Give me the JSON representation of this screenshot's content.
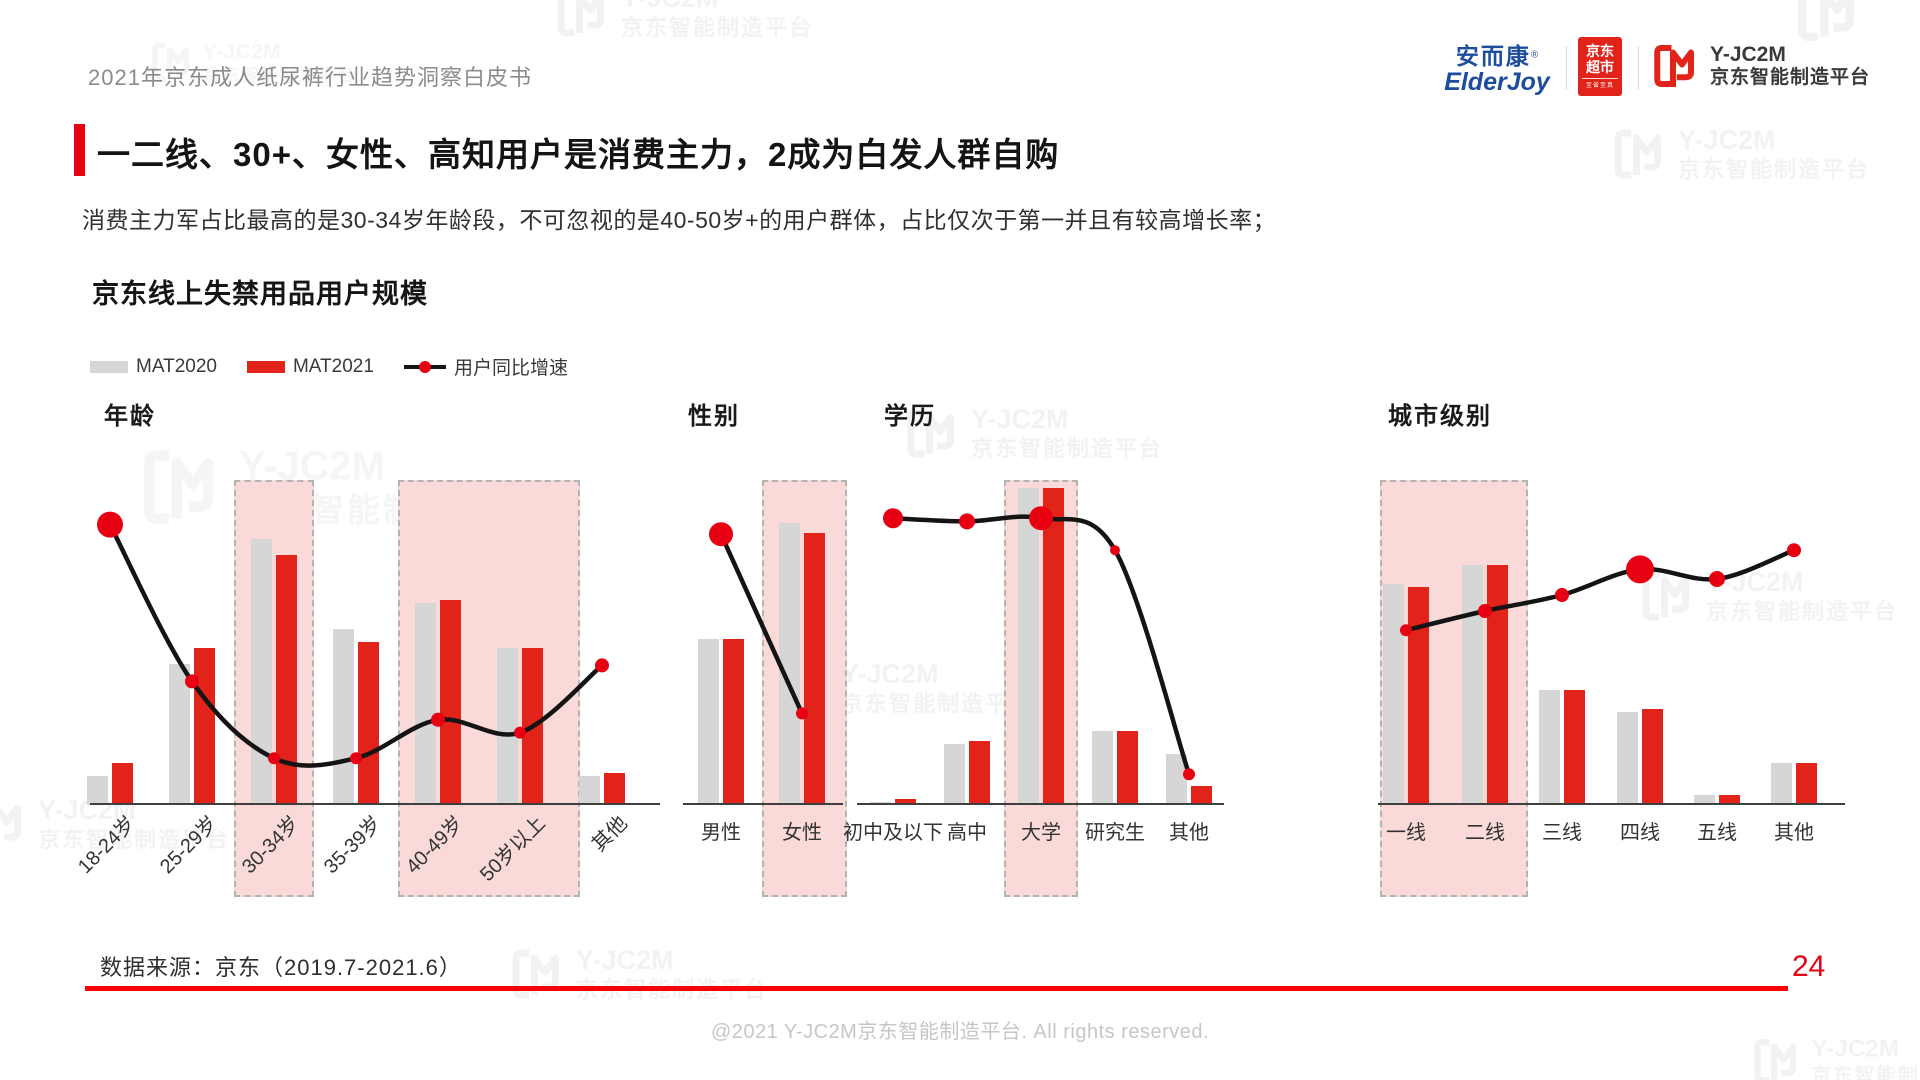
{
  "page": {
    "header_note": "2021年京东成人纸尿裤行业趋势洞察白皮书",
    "data_source": "数据来源：京东（2019.7-2021.6）",
    "page_number": "24",
    "footer_copyright": "@2021 Y-JC2M京东智能制造平台. All rights reserved."
  },
  "logos": {
    "elderjoy": {
      "cn": "安而康",
      "reg": "®",
      "en": "ElderJoy"
    },
    "jd_market": {
      "line1": "京东",
      "line2": "超市",
      "tagline": "至省至真"
    },
    "yjc2m": {
      "name": "Y-JC2M",
      "subtitle": "京东智能制造平台"
    }
  },
  "title": {
    "text": "一二线、30+、女性、高知用户是消费主力，2成为白发人群自购"
  },
  "subtitle": "消费主力军占比最高的是30-34岁年龄段，不可忽视的是40-50岁+的用户群体，占比仅次于第一并且有较高增长率；",
  "section_title": "京东线上失禁用品用户规模",
  "legend": [
    {
      "label": "MAT2020",
      "type": "bar",
      "color": "#d6d6d6"
    },
    {
      "label": "MAT2021",
      "type": "bar",
      "color": "#e2231a"
    },
    {
      "label": "用户同比增速",
      "type": "line",
      "color": "#141414",
      "dot_color": "#e60012"
    }
  ],
  "watermark": {
    "text": "Y-JC2M",
    "subtext": "京东智能制造平台"
  },
  "colors": {
    "brand_red": "#e2231a",
    "accent_red": "#e60012",
    "bar_gray": "#d6d6d6",
    "highlight_pink": "#f9dad9",
    "line_black": "#141414"
  },
  "chart_data": [
    {
      "id": "age",
      "title": "年龄",
      "type": "bar",
      "categories": [
        "18-24岁",
        "25-29岁",
        "30-34岁",
        "35-39岁",
        "40-49岁",
        "50岁以上",
        "其他"
      ],
      "series": [
        {
          "name": "MAT2020",
          "values": [
            9,
            44,
            83,
            55,
            63,
            49,
            9
          ]
        },
        {
          "name": "MAT2021",
          "values": [
            13,
            49,
            78,
            51,
            64,
            49,
            10
          ]
        }
      ],
      "line": {
        "name": "用户同比增速",
        "values": [
          87,
          38,
          14,
          14,
          26,
          22,
          43
        ],
        "dot_radii": [
          13,
          7,
          6,
          6,
          7,
          6,
          7
        ]
      },
      "highlighted_categories": [
        [
          "30-34岁"
        ],
        [
          "40-49岁",
          "50岁以上"
        ]
      ],
      "ylabel": "",
      "unit": "relative user-scale 0-100 (no numeric axis shown)",
      "legend_position": "top-left",
      "grid": false
    },
    {
      "id": "gender",
      "title": "性别",
      "type": "bar",
      "categories": [
        "男性",
        "女性"
      ],
      "series": [
        {
          "name": "MAT2020",
          "values": [
            52,
            88
          ]
        },
        {
          "name": "MAT2021",
          "values": [
            52,
            85
          ]
        }
      ],
      "line": {
        "name": "用户同比增速",
        "values": [
          84,
          28
        ],
        "dot_radii": [
          12,
          6
        ]
      },
      "highlighted_categories": [
        [
          "女性"
        ]
      ],
      "ylabel": "",
      "unit": "relative user-scale 0-100 (no numeric axis shown)",
      "legend_position": "top-left",
      "grid": false
    },
    {
      "id": "education",
      "title": "学历",
      "type": "bar",
      "categories": [
        "初中及以下",
        "高中",
        "大学",
        "研究生",
        "其他"
      ],
      "series": [
        {
          "name": "MAT2020",
          "values": [
            1,
            19,
            99,
            23,
            16
          ]
        },
        {
          "name": "MAT2021",
          "values": [
            2,
            20,
            99,
            23,
            6
          ]
        }
      ],
      "line": {
        "name": "用户同比增速",
        "values": [
          89,
          88,
          89,
          79,
          9
        ],
        "dot_radii": [
          10,
          8,
          12,
          5,
          6
        ]
      },
      "highlighted_categories": [
        [
          "大学"
        ]
      ],
      "ylabel": "",
      "unit": "relative user-scale 0-100 (no numeric axis shown)",
      "legend_position": "top-left",
      "grid": false
    },
    {
      "id": "city",
      "title": "城市级别",
      "type": "bar",
      "categories": [
        "一线",
        "二线",
        "三线",
        "四线",
        "五线",
        "其他"
      ],
      "series": [
        {
          "name": "MAT2020",
          "values": [
            69,
            75,
            36,
            29,
            3,
            13
          ]
        },
        {
          "name": "MAT2021",
          "values": [
            68,
            75,
            36,
            30,
            3,
            13
          ]
        }
      ],
      "line": {
        "name": "用户同比增速",
        "values": [
          54,
          60,
          65,
          73,
          70,
          79
        ],
        "dot_radii": [
          6,
          7,
          7,
          14,
          8,
          7
        ]
      },
      "highlighted_categories": [
        [
          "一线",
          "二线"
        ]
      ],
      "ylabel": "",
      "unit": "relative user-scale 0-100 (no numeric axis shown)",
      "legend_position": "top-left",
      "grid": false
    }
  ]
}
